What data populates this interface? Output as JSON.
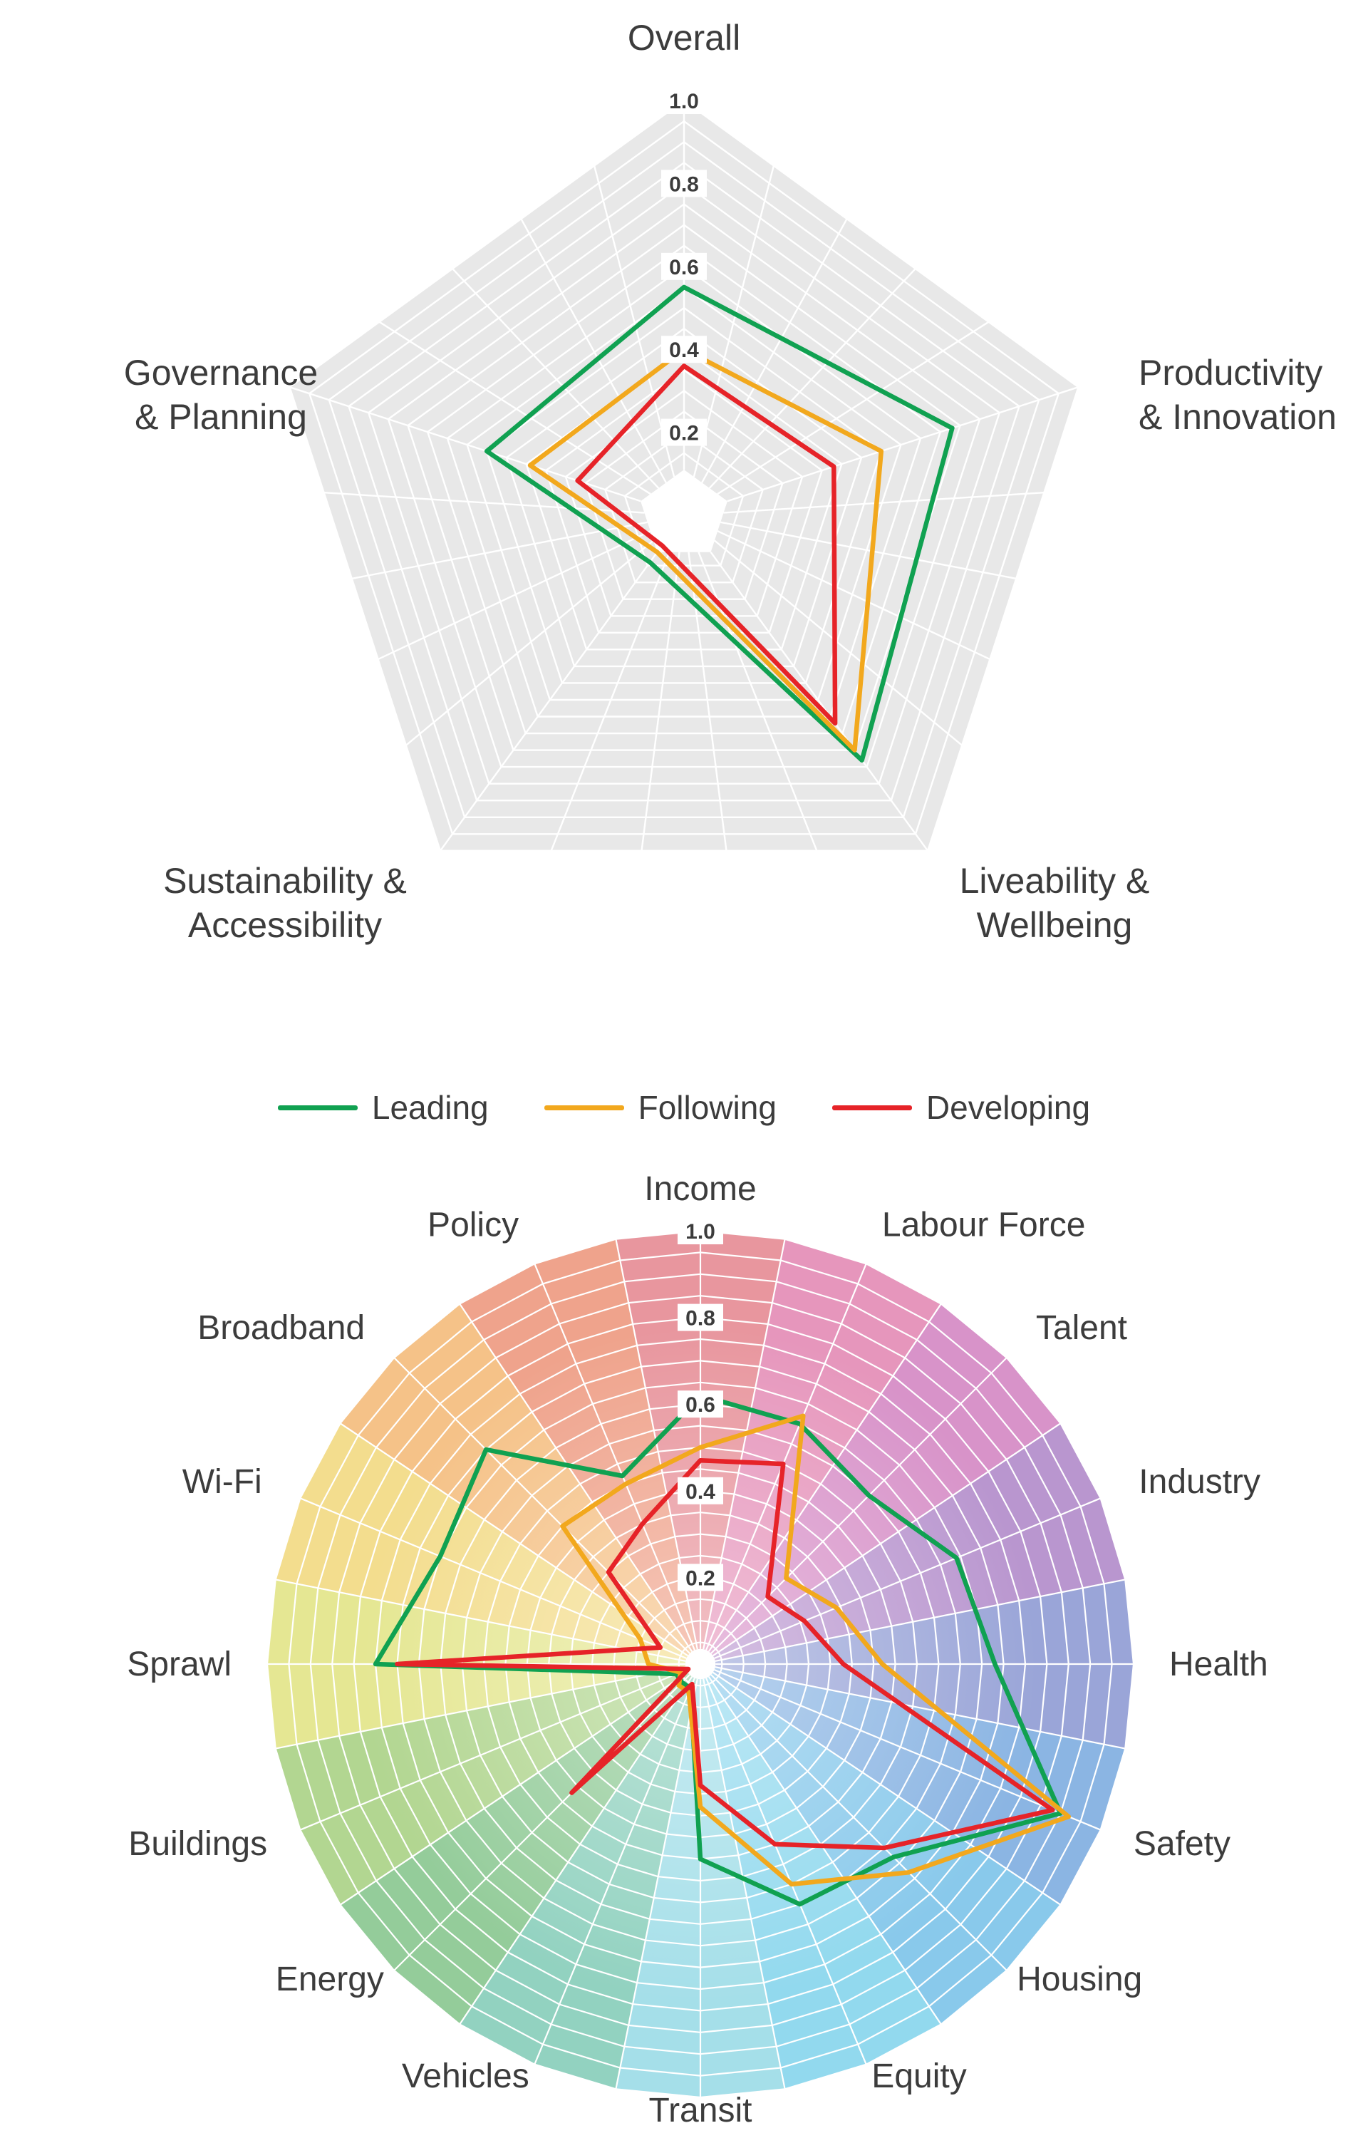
{
  "page": {
    "background": "#ffffff"
  },
  "legend": {
    "items": [
      {
        "label": "Leading",
        "color": "#10a151"
      },
      {
        "label": "Following",
        "color": "#f2a81d"
      },
      {
        "label": "Developing",
        "color": "#e62328"
      }
    ]
  },
  "chart_data": [
    {
      "type": "radar",
      "title": "",
      "axes": [
        "Overall",
        "Productivity & Innovation",
        "Liveability & Wellbeing",
        "Sustainability & Accessibility",
        "Governance & Planning"
      ],
      "axis_label_lines": [
        [
          "Overall"
        ],
        [
          "Productivity",
          "& Innovation"
        ],
        [
          "Liveability &",
          "Wellbeing"
        ],
        [
          "Sustainability &",
          "Accessibility"
        ],
        [
          "Governance",
          "& Planning"
        ]
      ],
      "tick_labels": [
        "0.2",
        "0.4",
        "0.6",
        "0.8",
        "1.0"
      ],
      "rlim": [
        0,
        1
      ],
      "grid": "gray pentagon web, white gridlines, white center hole",
      "legend_position": "below chart",
      "series": [
        {
          "name": "Leading",
          "color": "#10a151",
          "values": [
            0.55,
            0.68,
            0.73,
            0.14,
            0.5
          ]
        },
        {
          "name": "Following",
          "color": "#f2a81d",
          "values": [
            0.4,
            0.5,
            0.7,
            0.11,
            0.39
          ]
        },
        {
          "name": "Developing",
          "color": "#e62328",
          "values": [
            0.36,
            0.38,
            0.62,
            0.09,
            0.27
          ]
        }
      ]
    },
    {
      "type": "radar",
      "title": "",
      "axes": [
        "Income",
        "Labour Force",
        "Talent",
        "Industry",
        "Health",
        "Safety",
        "Housing",
        "Equity",
        "Transit",
        "Vehicles",
        "Energy",
        "Buildings",
        "Sprawl",
        "Wi-Fi",
        "Broadband",
        "Policy"
      ],
      "tick_labels": [
        "0.2",
        "0.4",
        "0.6",
        "0.8",
        "1.0"
      ],
      "rlim": [
        0,
        1
      ],
      "grid": "16 colored sector wheel, white web gridlines",
      "sector_colors": [
        "#e8969e",
        "#e696bc",
        "#d893c9",
        "#b996cf",
        "#9aa5d8",
        "#8bb5e3",
        "#89c9eb",
        "#92d9ee",
        "#a5dfe9",
        "#92d2c0",
        "#94cc9a",
        "#b2d691",
        "#e5e793",
        "#f3dd8e",
        "#f5c288",
        "#efa38c"
      ],
      "series": [
        {
          "name": "Leading",
          "color": "#10a151",
          "values": [
            0.62,
            0.6,
            0.55,
            0.64,
            0.68,
            0.9,
            0.63,
            0.6,
            0.45,
            0.06,
            0.06,
            0.06,
            0.75,
            0.65,
            0.7,
            0.47
          ]
        },
        {
          "name": "Following",
          "color": "#f2a81d",
          "values": [
            0.5,
            0.62,
            0.28,
            0.34,
            0.42,
            0.92,
            0.68,
            0.55,
            0.33,
            0.07,
            0.07,
            0.05,
            0.12,
            0.15,
            0.45,
            0.45
          ]
        },
        {
          "name": "Developing",
          "color": "#e62328",
          "values": [
            0.47,
            0.5,
            0.22,
            0.26,
            0.33,
            0.88,
            0.6,
            0.45,
            0.28,
            0.05,
            0.42,
            0.03,
            0.7,
            0.1,
            0.3,
            0.35
          ]
        }
      ]
    }
  ]
}
